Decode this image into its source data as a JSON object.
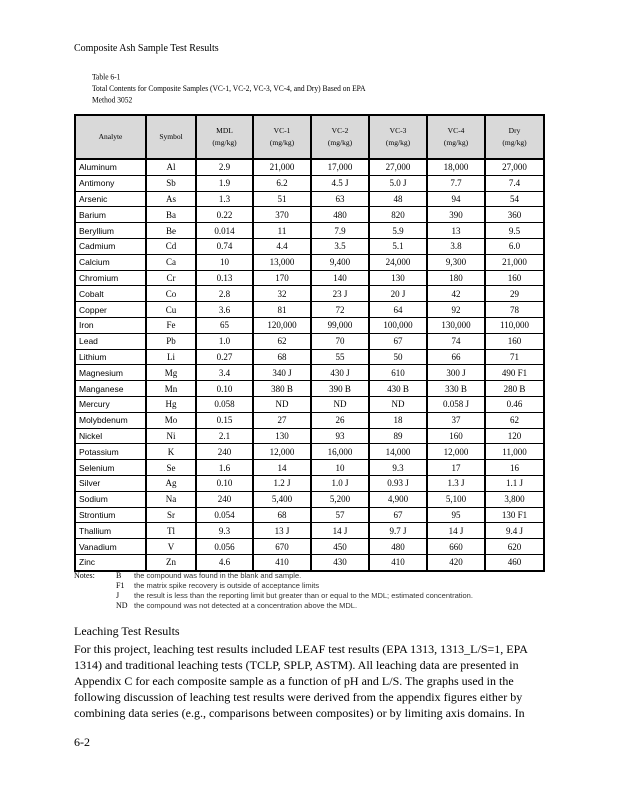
{
  "header": "Composite Ash Sample Test Results",
  "caption": {
    "line1": "Table 6-1",
    "line2": "Total Contents for Composite Samples (VC-1, VC-2, VC-3, VC-4, and Dry) Based on EPA",
    "line3": "Method 3052"
  },
  "table": {
    "columns": [
      [
        "Analyte",
        ""
      ],
      [
        "Symbol",
        ""
      ],
      [
        "MDL",
        "(mg/kg)"
      ],
      [
        "VC-1",
        "(mg/kg)"
      ],
      [
        "VC-2",
        "(mg/kg)"
      ],
      [
        "VC-3",
        "(mg/kg)"
      ],
      [
        "VC-4",
        "(mg/kg)"
      ],
      [
        "Dry",
        "(mg/kg)"
      ]
    ],
    "rows": [
      [
        "Aluminum",
        "Al",
        "2.9",
        "21,000",
        "17,000",
        "27,000",
        "18,000",
        "27,000"
      ],
      [
        "Antimony",
        "Sb",
        "1.9",
        "6.2",
        "4.5 J",
        "5.0 J",
        "7.7",
        "7.4"
      ],
      [
        "Arsenic",
        "As",
        "1.3",
        "51",
        "63",
        "48",
        "94",
        "54"
      ],
      [
        "Barium",
        "Ba",
        "0.22",
        "370",
        "480",
        "820",
        "390",
        "360"
      ],
      [
        "Beryllium",
        "Be",
        "0.014",
        "11",
        "7.9",
        "5.9",
        "13",
        "9.5"
      ],
      [
        "Cadmium",
        "Cd",
        "0.74",
        "4.4",
        "3.5",
        "5.1",
        "3.8",
        "6.0"
      ],
      [
        "Calcium",
        "Ca",
        "10",
        "13,000",
        "9,400",
        "24,000",
        "9,300",
        "21,000"
      ],
      [
        "Chromium",
        "Cr",
        "0.13",
        "170",
        "140",
        "130",
        "180",
        "160"
      ],
      [
        "Cobalt",
        "Co",
        "2.8",
        "32",
        "23 J",
        "20 J",
        "42",
        "29"
      ],
      [
        "Copper",
        "Cu",
        "3.6",
        "81",
        "72",
        "64",
        "92",
        "78"
      ],
      [
        "Iron",
        "Fe",
        "65",
        "120,000",
        "99,000",
        "100,000",
        "130,000",
        "110,000"
      ],
      [
        "Lead",
        "Pb",
        "1.0",
        "62",
        "70",
        "67",
        "74",
        "160"
      ],
      [
        "Lithium",
        "Li",
        "0.27",
        "68",
        "55",
        "50",
        "66",
        "71"
      ],
      [
        "Magnesium",
        "Mg",
        "3.4",
        "340 J",
        "430 J",
        "610",
        "300 J",
        "490 F1"
      ],
      [
        "Manganese",
        "Mn",
        "0.10",
        "380 B",
        "390 B",
        "430 B",
        "330 B",
        "280 B"
      ],
      [
        "Mercury",
        "Hg",
        "0.058",
        "ND",
        "ND",
        "ND",
        "0.058 J",
        "0.46"
      ],
      [
        "Molybdenum",
        "Mo",
        "0.15",
        "27",
        "26",
        "18",
        "37",
        "62"
      ],
      [
        "Nickel",
        "Ni",
        "2.1",
        "130",
        "93",
        "89",
        "160",
        "120"
      ],
      [
        "Potassium",
        "K",
        "240",
        "12,000",
        "16,000",
        "14,000",
        "12,000",
        "11,000"
      ],
      [
        "Selenium",
        "Se",
        "1.6",
        "14",
        "10",
        "9.3",
        "17",
        "16"
      ],
      [
        "Silver",
        "Ag",
        "0.10",
        "1.2 J",
        "1.0 J",
        "0.93 J",
        "1.3 J",
        "1.1 J"
      ],
      [
        "Sodium",
        "Na",
        "240",
        "5,400",
        "5,200",
        "4,900",
        "5,100",
        "3,800"
      ],
      [
        "Strontium",
        "Sr",
        "0.054",
        "68",
        "57",
        "67",
        "95",
        "130 F1"
      ],
      [
        "Thallium",
        "Tl",
        "9.3",
        "13 J",
        "14 J",
        "9.7 J",
        "14 J",
        "9.4 J"
      ],
      [
        "Vanadium",
        "V",
        "0.056",
        "670",
        "450",
        "480",
        "660",
        "620"
      ],
      [
        "Zinc",
        "Zn",
        "4.6",
        "410",
        "430",
        "410",
        "420",
        "460"
      ]
    ]
  },
  "notes": {
    "label": "Notes:",
    "items": [
      {
        "code": "B",
        "text": "the compound was found in the blank and sample."
      },
      {
        "code": "F1",
        "text": "the matrix spike recovery is outside of acceptance limits"
      },
      {
        "code": "J",
        "text": "the result is less than the reporting limit but greater than or equal to the MDL; estimated concentration."
      },
      {
        "code": "ND",
        "text": "the compound was not detected at a concentration above the MDL."
      }
    ]
  },
  "section_title": "Leaching Test Results",
  "body_lines": [
    "For this project, leaching test results included LEAF test results (EPA 1313, 1313_L/S=1, EPA",
    "1314) and traditional leaching tests (TCLP, SPLP, ASTM). All leaching data are presented in",
    "Appendix C for each composite sample as a function of pH and L/S. The graphs used in the",
    "following discussion of leaching test results were derived from the appendix figures either by",
    "combining data series (e.g., comparisons between composites) or by limiting axis domains. In"
  ],
  "page_number": "6-2"
}
